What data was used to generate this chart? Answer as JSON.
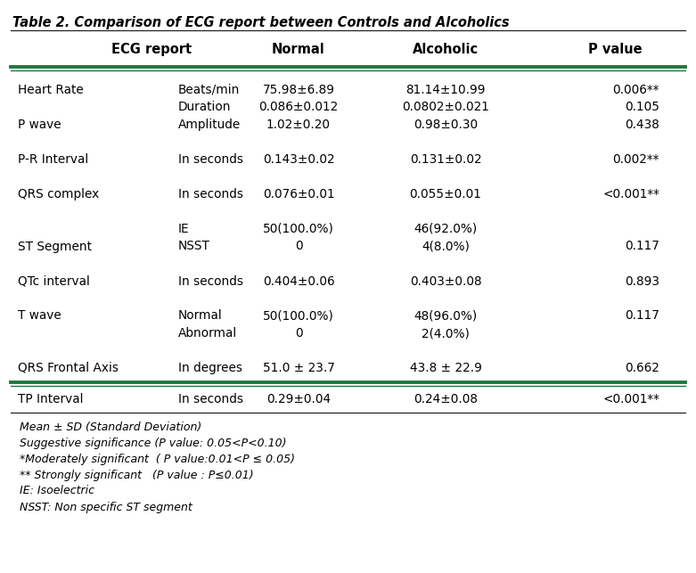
{
  "title": "Table 2. Comparison of ECG report between Controls and Alcoholics",
  "col_headers": [
    "ECG report",
    "Normal",
    "Alcoholic",
    "P value"
  ],
  "rows": [
    {
      "label": "Heart Rate",
      "sub": "Beats/min",
      "normal": "75.98±6.89",
      "alcoholic": "81.14±10.99",
      "pval": "0.006**"
    },
    {
      "label": "",
      "sub": "Duration",
      "normal": "0.086±0.012",
      "alcoholic": "0.0802±0.021",
      "pval": "0.105"
    },
    {
      "label": "P wave",
      "sub": "Amplitude",
      "normal": "1.02±0.20",
      "alcoholic": "0.98±0.30",
      "pval": "0.438"
    },
    {
      "label": "",
      "sub": "",
      "normal": "",
      "alcoholic": "",
      "pval": ""
    },
    {
      "label": "P-R Interval",
      "sub": "In seconds",
      "normal": "0.143±0.02",
      "alcoholic": "0.131±0.02",
      "pval": "0.002**"
    },
    {
      "label": "",
      "sub": "",
      "normal": "",
      "alcoholic": "",
      "pval": ""
    },
    {
      "label": "QRS complex",
      "sub": "In seconds",
      "normal": "0.076±0.01",
      "alcoholic": "0.055±0.01",
      "pval": "<0.001**"
    },
    {
      "label": "",
      "sub": "",
      "normal": "",
      "alcoholic": "",
      "pval": ""
    },
    {
      "label": "",
      "sub": "IE",
      "normal": "50(100.0%)",
      "alcoholic": "46(92.0%)",
      "pval": ""
    },
    {
      "label": "ST Segment",
      "sub": "NSST",
      "normal": "0",
      "alcoholic": "4(8.0%)",
      "pval": "0.117"
    },
    {
      "label": "",
      "sub": "",
      "normal": "",
      "alcoholic": "",
      "pval": ""
    },
    {
      "label": "QTc interval",
      "sub": "In seconds",
      "normal": "0.404±0.06",
      "alcoholic": "0.403±0.08",
      "pval": "0.893"
    },
    {
      "label": "",
      "sub": "",
      "normal": "",
      "alcoholic": "",
      "pval": ""
    },
    {
      "label": "T wave",
      "sub": "Normal",
      "normal": "50(100.0%)",
      "alcoholic": "48(96.0%)",
      "pval": "0.117"
    },
    {
      "label": "",
      "sub": "Abnormal",
      "normal": "0",
      "alcoholic": "2(4.0%)",
      "pval": ""
    },
    {
      "label": "",
      "sub": "",
      "normal": "",
      "alcoholic": "",
      "pval": ""
    },
    {
      "label": "QRS Frontal Axis",
      "sub": "In degrees",
      "normal": "51.0 ± 23.7",
      "alcoholic": "43.8 ± 22.9",
      "pval": "0.662"
    }
  ],
  "last_row": {
    "label": "TP Interval",
    "sub": "In seconds",
    "normal": "0.29±0.04",
    "alcoholic": "0.24±0.08",
    "pval": "<0.001**"
  },
  "footnotes": [
    "Mean ± SD (Standard Deviation)",
    "Suggestive significance (P value: 0.05<P<0.10)",
    "*Moderately significant  ( P value:0.01<P ≤ 0.05)",
    "** Strongly significant   (P value : P≤0.01)",
    "IE: Isoelectric",
    "NSST: Non specific ST segment"
  ],
  "green_color": "#1a7a3c",
  "dark_color": "#222222",
  "bg_color": "#ffffff",
  "text_color": "#000000",
  "fs_title": 10.5,
  "fs_header": 10.5,
  "fs_body": 9.8,
  "fs_footnote": 9.0,
  "fig_w": 7.81,
  "fig_h": 6.43,
  "dpi": 100
}
